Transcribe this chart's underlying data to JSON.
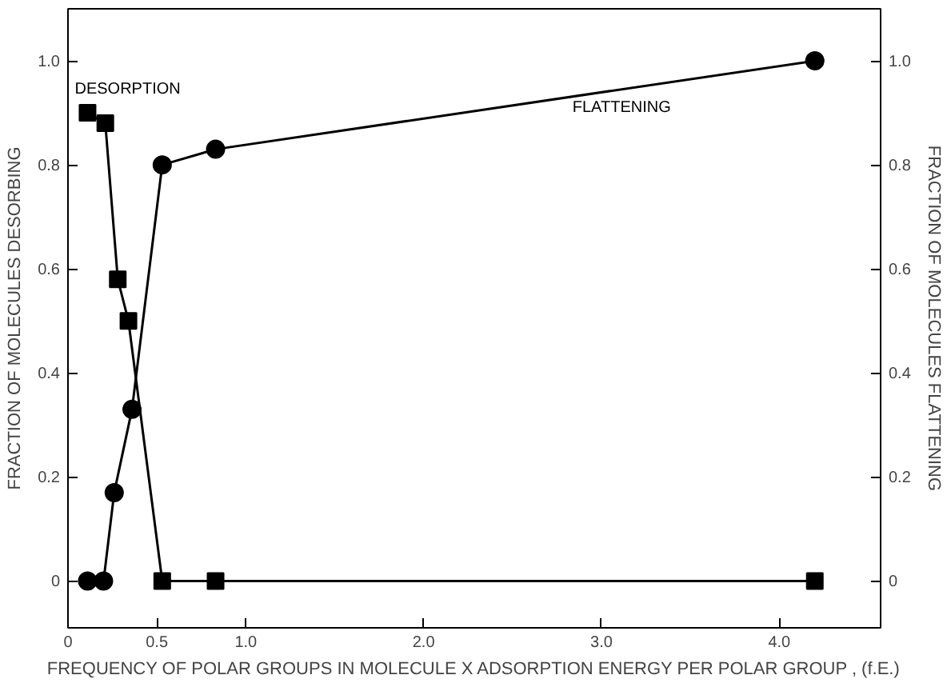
{
  "chart_data": {
    "type": "line",
    "xlabel": "FREQUENCY OF POLAR GROUPS IN MOLECULE X ADSORPTION ENERGY PER POLAR GROUP , (f.E.)",
    "ylabel": "FRACTION OF MOLECULES DESORBING",
    "y2label": "FRACTION OF MOLECULES FLATTENING",
    "xlim": [
      0,
      4.57
    ],
    "ylim": [
      -0.09,
      1.1
    ],
    "y2lim": [
      -0.09,
      1.1
    ],
    "xticks": [
      0,
      0.5,
      {
        "value": 1,
        "label": "1.0"
      },
      {
        "value": 2,
        "label": "2.0"
      },
      {
        "value": 3,
        "label": "3.0"
      },
      {
        "value": 4,
        "label": "4.0"
      }
    ],
    "yticks": [
      0,
      0.2,
      0.4,
      0.6,
      0.8,
      {
        "value": 1,
        "label": "1.0"
      }
    ],
    "y2ticks": [
      0,
      0.2,
      0.4,
      0.6,
      0.8,
      {
        "value": 1,
        "label": "1.0"
      }
    ],
    "series": [
      {
        "name": "DESORPTION",
        "color": "#000000",
        "marker": "square",
        "x": [
          0.11,
          0.21,
          0.28,
          0.34,
          0.53,
          0.83,
          4.2
        ],
        "values": [
          0.9,
          0.88,
          0.58,
          0.5,
          0,
          0,
          0
        ]
      },
      {
        "name": "FLATTENING",
        "color": "#000000",
        "marker": "circle",
        "x": [
          0.11,
          0.2,
          0.26,
          0.36,
          0.53,
          0.83,
          4.2
        ],
        "values": [
          0,
          0,
          0.17,
          0.33,
          0.8,
          0.83,
          1.0
        ]
      }
    ],
    "grid": false,
    "line_style": "solid"
  }
}
